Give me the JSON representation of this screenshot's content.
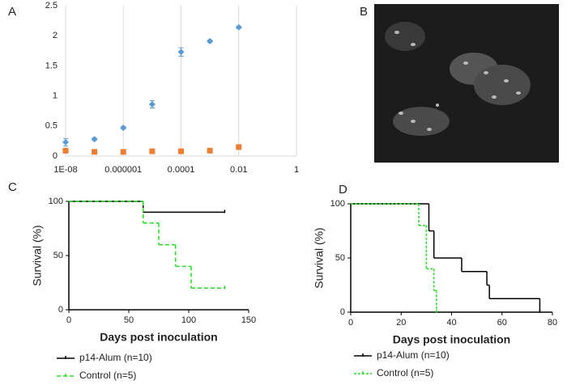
{
  "chart_data": [
    {
      "type": "scatter",
      "label": "A",
      "xscale": "log",
      "x": [
        1e-08,
        1e-07,
        1e-06,
        1e-05,
        0.0001,
        0.001,
        0.01
      ],
      "series": [
        {
          "color": "#5b9bd5",
          "marker": "diamond",
          "values": [
            0.23,
            0.28,
            0.47,
            0.86,
            1.73,
            1.91,
            2.14
          ],
          "errors": [
            0.06,
            0.02,
            0.02,
            0.06,
            0.07,
            0.02,
            0.02
          ]
        },
        {
          "color": "#ed7d31",
          "marker": "square",
          "values": [
            0.09,
            0.07,
            0.07,
            0.08,
            0.08,
            0.09,
            0.15
          ]
        }
      ],
      "xlim": [
        1e-08,
        1
      ],
      "xticks": [
        {
          "value": 1e-08,
          "label": "1E-08"
        },
        1e-06,
        0.0001,
        0.01,
        1
      ],
      "ylim": [
        0,
        2.5
      ],
      "yticks": [
        0,
        0.5,
        1,
        1.5,
        2,
        2.5
      ],
      "grid": true
    },
    {
      "type": "image",
      "label": "B"
    },
    {
      "type": "survival",
      "label": "C",
      "xlabel": "Days post inoculation",
      "ylabel": "Survival (%)",
      "series": [
        {
          "name": "p14-Alum (n=10)",
          "color": "#000000",
          "line_style": "solid",
          "x": [
            0,
            62,
            130
          ],
          "values": [
            100,
            90,
            90
          ]
        },
        {
          "name": "Control (n=5)",
          "color": "#22dd22",
          "line_style": "dashed",
          "x": [
            0,
            62,
            75,
            89,
            102,
            130
          ],
          "values": [
            100,
            80,
            60,
            40,
            20,
            20
          ]
        }
      ],
      "xlim": [
        0,
        150
      ],
      "xticks": [
        0,
        50,
        100,
        150
      ],
      "ylim": [
        0,
        100
      ],
      "yticks": [
        0,
        50,
        100
      ]
    },
    {
      "type": "survival",
      "label": "D",
      "xlabel": "Days post inoculation",
      "ylabel": "Survival (%)",
      "series": [
        {
          "name": "p14-Alum (n=10)",
          "color": "#000000",
          "line_style": "solid",
          "x": [
            0,
            31,
            33,
            44,
            54,
            55,
            75
          ],
          "values": [
            100,
            75,
            50,
            37.5,
            25,
            12.5,
            0
          ]
        },
        {
          "name": "Control (n=5)",
          "color": "#22dd22",
          "line_style": "dotted",
          "x": [
            0,
            27,
            30,
            33,
            34
          ],
          "values": [
            100,
            80,
            40,
            20,
            0
          ]
        }
      ],
      "xlim": [
        0,
        80
      ],
      "xticks": [
        0,
        20,
        40,
        60,
        80
      ],
      "ylim": [
        0,
        100
      ],
      "yticks": [
        0,
        50,
        100
      ]
    }
  ]
}
